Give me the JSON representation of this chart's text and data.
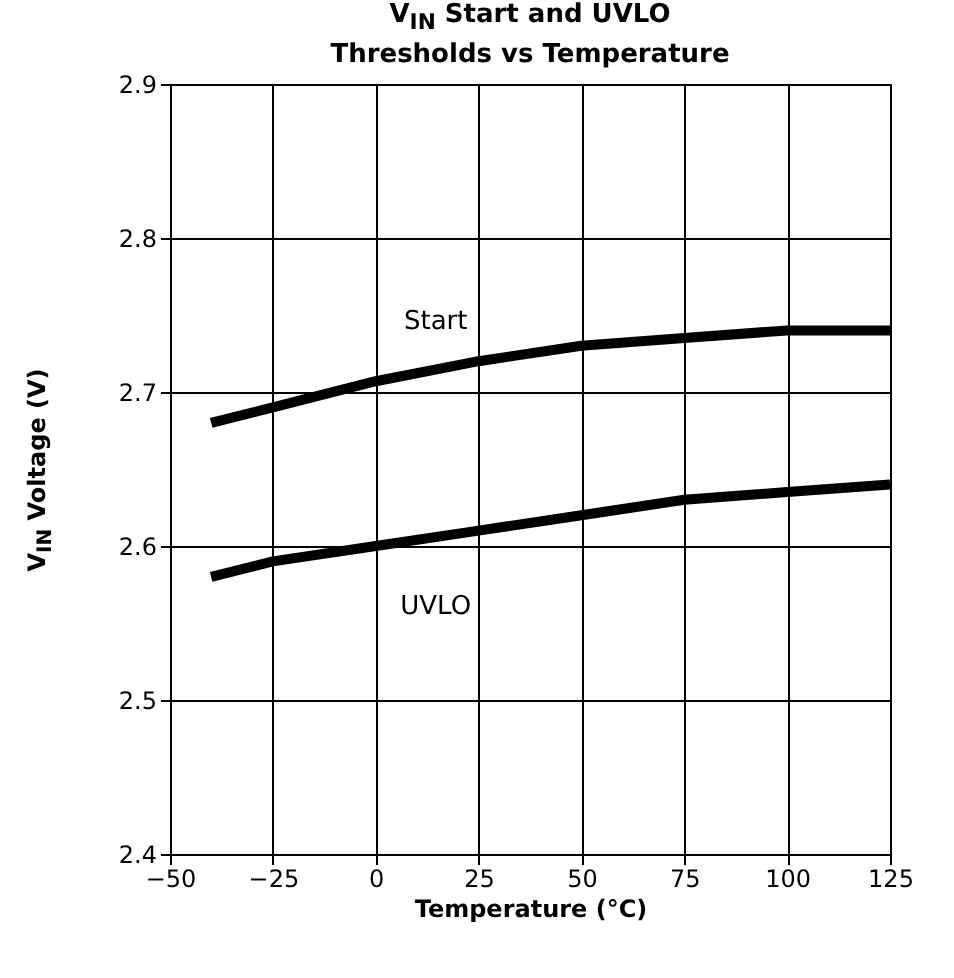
{
  "chart_data": {
    "type": "line",
    "title": "V$_{IN}$ Start and UVLO\nThresholds vs Temperature",
    "xlabel": "Temperature (°C)",
    "ylabel": "V$_{IN}$ Voltage (V)",
    "x": [
      -40,
      -25,
      0,
      25,
      50,
      75,
      100,
      125
    ],
    "series": [
      {
        "name": "Start",
        "color": "#000000",
        "values": [
          2.68,
          2.69,
          2.707,
          2.72,
          2.73,
          2.735,
          2.74,
          2.74
        ]
      },
      {
        "name": "UVLO",
        "color": "#000000",
        "values": [
          2.58,
          2.59,
          2.6,
          2.61,
          2.62,
          2.63,
          2.635,
          2.64
        ]
      }
    ],
    "xlim": [
      -50,
      125
    ],
    "xticks": [
      -50,
      -25,
      0,
      25,
      50,
      75,
      100,
      125
    ],
    "ylim": [
      2.4,
      2.9
    ],
    "yticks": [
      2.4,
      2.5,
      2.6,
      2.7,
      2.8,
      2.9
    ],
    "grid": true,
    "marker": "none",
    "line_style": "solid"
  }
}
